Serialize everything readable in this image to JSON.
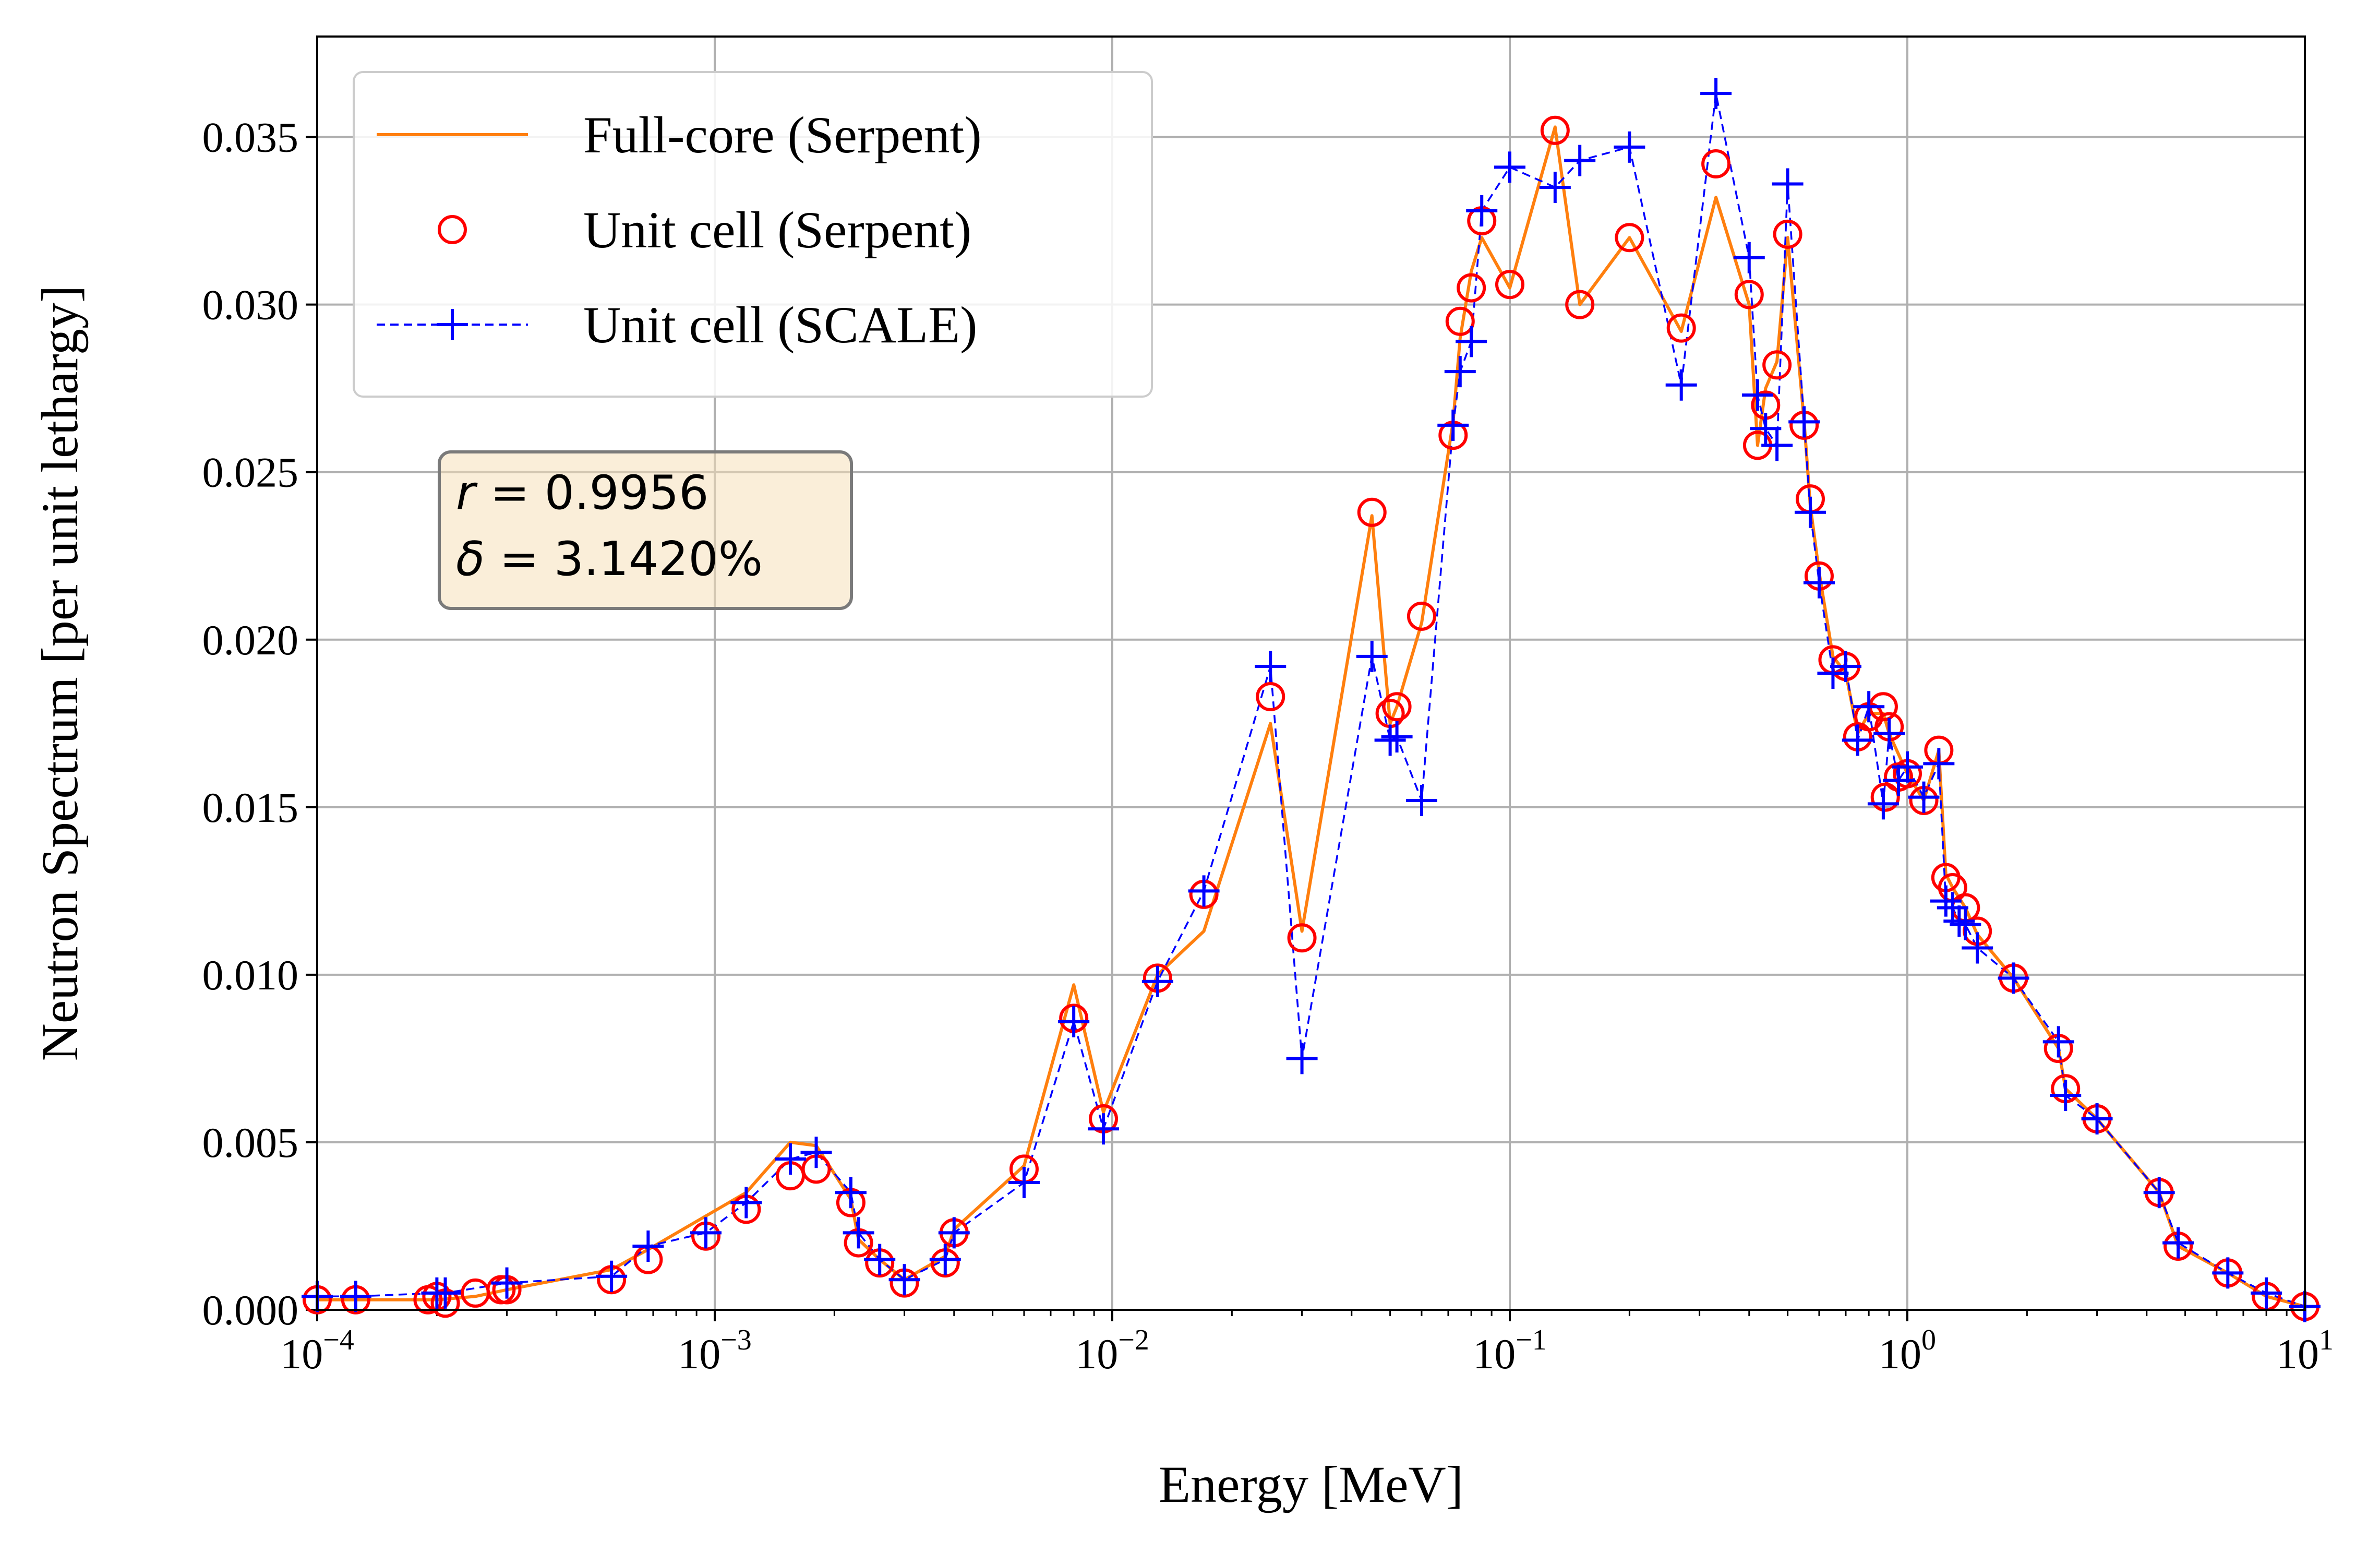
{
  "chart_data": {
    "type": "line",
    "xlabel": "Energy [MeV]",
    "ylabel": "Neutron Spectrum [per unit lethargy]",
    "x_scale": "log",
    "xlim": [
      0.0001,
      10
    ],
    "ylim": [
      0,
      0.038
    ],
    "x_ticks": [
      {
        "base": "10",
        "exp": "−4",
        "value": 0.0001
      },
      {
        "base": "10",
        "exp": "−3",
        "value": 0.001
      },
      {
        "base": "10",
        "exp": "−2",
        "value": 0.01
      },
      {
        "base": "10",
        "exp": "−1",
        "value": 0.1
      },
      {
        "base": "10",
        "exp": "0",
        "value": 1
      },
      {
        "base": "10",
        "exp": "1",
        "value": 10
      }
    ],
    "y_ticks": [
      {
        "label": "0.000",
        "value": 0
      },
      {
        "label": "0.005",
        "value": 0.005
      },
      {
        "label": "0.010",
        "value": 0.01
      },
      {
        "label": "0.015",
        "value": 0.015
      },
      {
        "label": "0.020",
        "value": 0.02
      },
      {
        "label": "0.025",
        "value": 0.025
      },
      {
        "label": "0.030",
        "value": 0.03
      },
      {
        "label": "0.035",
        "value": 0.035
      }
    ],
    "grid": true,
    "legend": {
      "position": "top-left",
      "entries": [
        "Full-core (Serpent)",
        "Unit cell (Serpent)",
        "Unit cell (SCALE)"
      ]
    },
    "annotation": {
      "line1": {
        "var": "r",
        "text": " = 0.9956"
      },
      "line2": {
        "var": "δ",
        "text": " = 3.1420%"
      }
    },
    "series": [
      {
        "name": "Full-core (Serpent)",
        "color": "#ff7f0e",
        "style": "solid line",
        "points": [
          [
            0.0001,
            0.0003
          ],
          [
            0.000125,
            0.0003
          ],
          [
            0.0002,
            0.0003
          ],
          [
            0.00025,
            0.0004
          ],
          [
            0.0003,
            0.0006
          ],
          [
            0.00055,
            0.0012
          ],
          [
            0.00068,
            0.0018
          ],
          [
            0.00095,
            0.0028
          ],
          [
            0.0012,
            0.0035
          ],
          [
            0.00155,
            0.005
          ],
          [
            0.0018,
            0.0049
          ],
          [
            0.0022,
            0.0033
          ],
          [
            0.0023,
            0.0021
          ],
          [
            0.0026,
            0.0015
          ],
          [
            0.003,
            0.0009
          ],
          [
            0.0038,
            0.0016
          ],
          [
            0.004,
            0.0024
          ],
          [
            0.006,
            0.0043
          ],
          [
            0.008,
            0.0097
          ],
          [
            0.0095,
            0.0059
          ],
          [
            0.013,
            0.01
          ],
          [
            0.017,
            0.0113
          ],
          [
            0.025,
            0.0175
          ],
          [
            0.03,
            0.0113
          ],
          [
            0.045,
            0.0237
          ],
          [
            0.05,
            0.0175
          ],
          [
            0.052,
            0.018
          ],
          [
            0.06,
            0.0205
          ],
          [
            0.072,
            0.0265
          ],
          [
            0.075,
            0.029
          ],
          [
            0.08,
            0.031
          ],
          [
            0.085,
            0.032
          ],
          [
            0.1,
            0.0305
          ],
          [
            0.13,
            0.0353
          ],
          [
            0.15,
            0.03
          ],
          [
            0.2,
            0.032
          ],
          [
            0.27,
            0.0292
          ],
          [
            0.33,
            0.0332
          ],
          [
            0.4,
            0.03
          ],
          [
            0.42,
            0.0258
          ],
          [
            0.44,
            0.0275
          ],
          [
            0.47,
            0.0283
          ],
          [
            0.5,
            0.032
          ],
          [
            0.55,
            0.0265
          ],
          [
            0.57,
            0.024
          ],
          [
            0.6,
            0.022
          ],
          [
            0.65,
            0.0195
          ],
          [
            0.7,
            0.019
          ],
          [
            0.75,
            0.0172
          ],
          [
            0.8,
            0.0178
          ],
          [
            0.87,
            0.0178
          ],
          [
            0.9,
            0.0172
          ],
          [
            1.0,
            0.016
          ],
          [
            1.1,
            0.0152
          ],
          [
            1.2,
            0.0167
          ],
          [
            1.25,
            0.013
          ],
          [
            1.3,
            0.0126
          ],
          [
            1.4,
            0.012
          ],
          [
            1.5,
            0.0112
          ],
          [
            1.85,
            0.0099
          ],
          [
            2.4,
            0.0078
          ],
          [
            2.5,
            0.0066
          ],
          [
            3.0,
            0.0057
          ],
          [
            4.3,
            0.0035
          ],
          [
            4.8,
            0.0019
          ],
          [
            6.4,
            0.0011
          ],
          [
            8.0,
            0.0004
          ],
          [
            10,
            0.0001
          ]
        ]
      },
      {
        "name": "Unit cell (Serpent)",
        "color": "#ff0000",
        "style": "open circle markers",
        "points": [
          [
            0.0001,
            0.0003
          ],
          [
            0.000125,
            0.0003
          ],
          [
            0.00019,
            0.0003
          ],
          [
            0.0002,
            0.0004
          ],
          [
            0.00021,
            0.0002
          ],
          [
            0.00025,
            0.0005
          ],
          [
            0.00029,
            0.0006
          ],
          [
            0.0003,
            0.0006
          ],
          [
            0.00055,
            0.0009
          ],
          [
            0.00068,
            0.0015
          ],
          [
            0.00095,
            0.0022
          ],
          [
            0.0012,
            0.003
          ],
          [
            0.00155,
            0.004
          ],
          [
            0.0018,
            0.0042
          ],
          [
            0.0022,
            0.0032
          ],
          [
            0.0023,
            0.002
          ],
          [
            0.0026,
            0.0014
          ],
          [
            0.003,
            0.0008
          ],
          [
            0.0038,
            0.0014
          ],
          [
            0.004,
            0.0023
          ],
          [
            0.006,
            0.0042
          ],
          [
            0.008,
            0.0087
          ],
          [
            0.0095,
            0.0057
          ],
          [
            0.013,
            0.0099
          ],
          [
            0.017,
            0.0124
          ],
          [
            0.025,
            0.0183
          ],
          [
            0.03,
            0.0111
          ],
          [
            0.045,
            0.0238
          ],
          [
            0.05,
            0.0178
          ],
          [
            0.052,
            0.018
          ],
          [
            0.06,
            0.0207
          ],
          [
            0.072,
            0.0261
          ],
          [
            0.075,
            0.0295
          ],
          [
            0.08,
            0.0305
          ],
          [
            0.085,
            0.0325
          ],
          [
            0.1,
            0.0306
          ],
          [
            0.13,
            0.0352
          ],
          [
            0.15,
            0.03
          ],
          [
            0.2,
            0.032
          ],
          [
            0.27,
            0.0293
          ],
          [
            0.33,
            0.0342
          ],
          [
            0.4,
            0.0303
          ],
          [
            0.42,
            0.0258
          ],
          [
            0.44,
            0.027
          ],
          [
            0.47,
            0.0282
          ],
          [
            0.5,
            0.0321
          ],
          [
            0.55,
            0.0264
          ],
          [
            0.57,
            0.0242
          ],
          [
            0.6,
            0.0219
          ],
          [
            0.65,
            0.0194
          ],
          [
            0.7,
            0.0192
          ],
          [
            0.75,
            0.0171
          ],
          [
            0.8,
            0.0177
          ],
          [
            0.87,
            0.018
          ],
          [
            0.88,
            0.0153
          ],
          [
            0.9,
            0.0174
          ],
          [
            0.95,
            0.0159
          ],
          [
            1.0,
            0.016
          ],
          [
            1.1,
            0.0152
          ],
          [
            1.2,
            0.0167
          ],
          [
            1.25,
            0.0129
          ],
          [
            1.3,
            0.0126
          ],
          [
            1.4,
            0.012
          ],
          [
            1.5,
            0.0113
          ],
          [
            1.85,
            0.0099
          ],
          [
            2.4,
            0.0078
          ],
          [
            2.5,
            0.0066
          ],
          [
            3.0,
            0.0057
          ],
          [
            4.3,
            0.0035
          ],
          [
            4.8,
            0.0019
          ],
          [
            6.4,
            0.0011
          ],
          [
            8.0,
            0.0004
          ],
          [
            10,
            0.0001
          ]
        ]
      },
      {
        "name": "Unit cell (SCALE)",
        "color": "#0000ff",
        "style": "dashed line with plus markers",
        "points": [
          [
            0.0001,
            0.0004
          ],
          [
            0.000125,
            0.0004
          ],
          [
            0.0002,
            0.0005
          ],
          [
            0.00021,
            0.0005
          ],
          [
            0.0003,
            0.0008
          ],
          [
            0.00055,
            0.001
          ],
          [
            0.00068,
            0.0019
          ],
          [
            0.00095,
            0.0023
          ],
          [
            0.0012,
            0.0032
          ],
          [
            0.00155,
            0.0045
          ],
          [
            0.0018,
            0.0047
          ],
          [
            0.0022,
            0.0035
          ],
          [
            0.0023,
            0.0023
          ],
          [
            0.0026,
            0.0015
          ],
          [
            0.003,
            0.0009
          ],
          [
            0.0038,
            0.0015
          ],
          [
            0.004,
            0.0023
          ],
          [
            0.006,
            0.0038
          ],
          [
            0.008,
            0.0086
          ],
          [
            0.0095,
            0.0054
          ],
          [
            0.013,
            0.0098
          ],
          [
            0.017,
            0.0125
          ],
          [
            0.025,
            0.0192
          ],
          [
            0.03,
            0.0075
          ],
          [
            0.045,
            0.0195
          ],
          [
            0.05,
            0.017
          ],
          [
            0.052,
            0.0171
          ],
          [
            0.06,
            0.0152
          ],
          [
            0.072,
            0.0264
          ],
          [
            0.075,
            0.028
          ],
          [
            0.08,
            0.0289
          ],
          [
            0.085,
            0.0328
          ],
          [
            0.1,
            0.0341
          ],
          [
            0.13,
            0.0335
          ],
          [
            0.15,
            0.0343
          ],
          [
            0.2,
            0.0347
          ],
          [
            0.27,
            0.0276
          ],
          [
            0.33,
            0.0363
          ],
          [
            0.4,
            0.0314
          ],
          [
            0.42,
            0.0273
          ],
          [
            0.44,
            0.0263
          ],
          [
            0.47,
            0.0258
          ],
          [
            0.5,
            0.0336
          ],
          [
            0.55,
            0.0265
          ],
          [
            0.57,
            0.0238
          ],
          [
            0.6,
            0.0217
          ],
          [
            0.65,
            0.019
          ],
          [
            0.7,
            0.0192
          ],
          [
            0.75,
            0.017
          ],
          [
            0.8,
            0.018
          ],
          [
            0.87,
            0.0151
          ],
          [
            0.9,
            0.0172
          ],
          [
            0.95,
            0.0158
          ],
          [
            1.0,
            0.0162
          ],
          [
            1.1,
            0.0153
          ],
          [
            1.2,
            0.0163
          ],
          [
            1.25,
            0.0122
          ],
          [
            1.3,
            0.012
          ],
          [
            1.35,
            0.0116
          ],
          [
            1.4,
            0.0115
          ],
          [
            1.5,
            0.0108
          ],
          [
            1.85,
            0.0099
          ],
          [
            2.4,
            0.008
          ],
          [
            2.5,
            0.0064
          ],
          [
            3.0,
            0.0057
          ],
          [
            4.3,
            0.0035
          ],
          [
            4.8,
            0.002
          ],
          [
            6.4,
            0.0011
          ],
          [
            8.0,
            0.0005
          ],
          [
            10,
            0.0001
          ]
        ]
      }
    ]
  }
}
